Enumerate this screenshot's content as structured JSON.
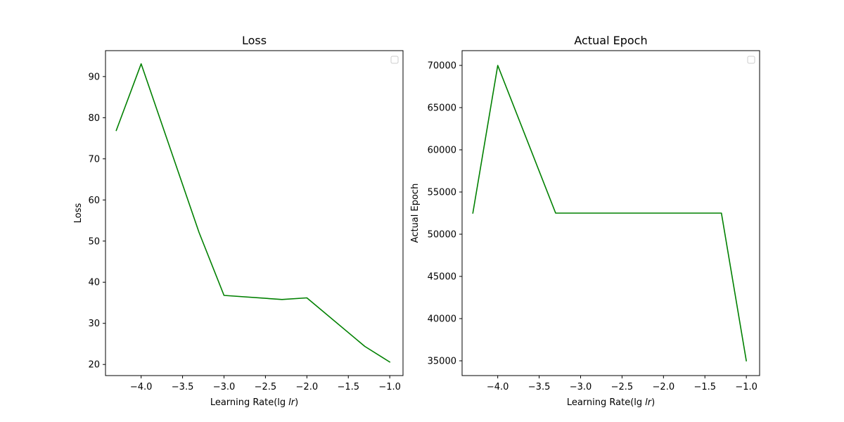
{
  "chart_data": [
    {
      "type": "line",
      "title": "Loss",
      "xlabel": "Learning Rate(lg",
      "xlabel_var": "lr",
      "xlabel_close": ")",
      "ylabel": "Loss",
      "xlim": [
        -4.43,
        -0.84
      ],
      "ylim": [
        17.3,
        96.3
      ],
      "xticks": [
        -4.0,
        -3.5,
        -3.0,
        -2.5,
        -2.0,
        -1.5,
        -1.0
      ],
      "xtick_labels": [
        "−4.0",
        "−3.5",
        "−3.0",
        "−2.5",
        "−2.0",
        "−1.5",
        "−1.0"
      ],
      "yticks": [
        20,
        30,
        40,
        50,
        60,
        70,
        80,
        90
      ],
      "ytick_labels": [
        "20",
        "30",
        "40",
        "50",
        "60",
        "70",
        "80",
        "90"
      ],
      "grid": false,
      "legend": "top-right (empty)",
      "series": [
        {
          "color": "#008000",
          "x": [
            -4.3,
            -4.0,
            -3.301,
            -3.0,
            -2.301,
            -2.0,
            -1.301,
            -1.0
          ],
          "y": [
            76.9,
            93.1,
            52.1,
            36.8,
            35.8,
            36.2,
            24.4,
            20.6
          ]
        }
      ]
    },
    {
      "type": "line",
      "title": "Actual Epoch",
      "xlabel": "Learning Rate(lg",
      "xlabel_var": "lr",
      "xlabel_close": ")",
      "ylabel": "Actual Epoch",
      "xlim": [
        -4.43,
        -0.84
      ],
      "ylim": [
        33250,
        71750
      ],
      "xticks": [
        -4.0,
        -3.5,
        -3.0,
        -2.5,
        -2.0,
        -1.5,
        -1.0
      ],
      "xtick_labels": [
        "−4.0",
        "−3.5",
        "−3.0",
        "−2.5",
        "−2.0",
        "−1.5",
        "−1.0"
      ],
      "yticks": [
        35000,
        40000,
        45000,
        50000,
        55000,
        60000,
        65000,
        70000
      ],
      "ytick_labels": [
        "35000",
        "40000",
        "45000",
        "50000",
        "55000",
        "60000",
        "65000",
        "70000"
      ],
      "grid": false,
      "legend": "top-right (empty)",
      "series": [
        {
          "color": "#008000",
          "x": [
            -4.3,
            -4.0,
            -3.301,
            -3.0,
            -2.301,
            -2.0,
            -1.301,
            -1.0
          ],
          "y": [
            52500,
            70000,
            52500,
            52500,
            52500,
            52500,
            52500,
            35000
          ]
        }
      ]
    }
  ]
}
